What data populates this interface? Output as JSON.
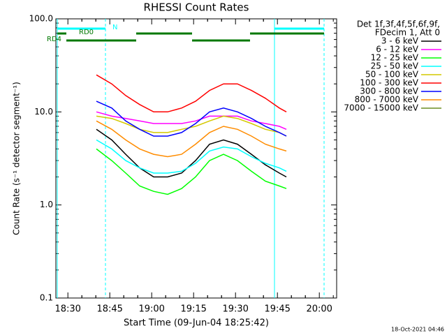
{
  "chart_data": {
    "type": "line",
    "title": "RHESSI Count Rates",
    "x_label": "Start Time (09-Jun-04 18:25:42)",
    "y_label": "Count Rate (s⁻¹ detector segment⁻¹)",
    "log_y": true,
    "xlim": [
      0,
      100.5
    ],
    "xticks": [
      {
        "value": 4.3,
        "label": "18:30"
      },
      {
        "value": 19.3,
        "label": "18:45"
      },
      {
        "value": 34.3,
        "label": "19:00"
      },
      {
        "value": 49.3,
        "label": "19:15"
      },
      {
        "value": 64.3,
        "label": "19:30"
      },
      {
        "value": 79.3,
        "label": "19:45"
      },
      {
        "value": 94.3,
        "label": "20:00"
      }
    ],
    "ylim": [
      0.1,
      100
    ],
    "yticks": [
      0.1,
      {
        "value": 1,
        "label": "1.0"
      },
      {
        "value": 10,
        "label": "10.0"
      },
      {
        "value": 100,
        "label": "100.0"
      }
    ],
    "legend_title": [
      "Det 1f,3f,4f,5f,6f,9f,",
      "FDecim 1, Att 0"
    ],
    "x": [
      14.5,
      20,
      25,
      30,
      35,
      40,
      45,
      50,
      55,
      60,
      65,
      70,
      75,
      80,
      82.5
    ],
    "series": [
      {
        "name": "3 - 6 keV",
        "color": "#000000",
        "values": [
          6.5,
          5,
          3.5,
          2.5,
          2,
          2,
          2.2,
          3,
          4.5,
          5,
          4.5,
          3.5,
          2.7,
          2.2,
          2
        ]
      },
      {
        "name": "6 - 12 keV",
        "color": "#ff00ff",
        "values": [
          10,
          9,
          8.5,
          8,
          7.5,
          7.5,
          7.5,
          8,
          9,
          9,
          9,
          8,
          7.5,
          7,
          6.5
        ]
      },
      {
        "name": "12 - 25 keV",
        "color": "#00ff00",
        "values": [
          4,
          3,
          2.2,
          1.6,
          1.4,
          1.3,
          1.5,
          2,
          3,
          3.5,
          3,
          2.3,
          1.8,
          1.6,
          1.5
        ]
      },
      {
        "name": "25 - 50 keV",
        "color": "#00ffff",
        "values": [
          5,
          4,
          3,
          2.5,
          2.2,
          2.2,
          2.3,
          2.8,
          3.8,
          4.2,
          4,
          3.3,
          2.8,
          2.5,
          2.3
        ]
      },
      {
        "name": "50 - 100 keV",
        "color": "#d4c800",
        "values": [
          9,
          8.5,
          7.5,
          6.5,
          6,
          6,
          6.5,
          7,
          8,
          9,
          8.5,
          7.5,
          6.5,
          6,
          5.5
        ]
      },
      {
        "name": "100 - 300 keV",
        "color": "#ff0000",
        "values": [
          25,
          20,
          15,
          12,
          10,
          10,
          11,
          13,
          17,
          20,
          20,
          17,
          14,
          11,
          10
        ]
      },
      {
        "name": "300 - 800 keV",
        "color": "#0000ff",
        "values": [
          13,
          11,
          8,
          6.5,
          5.5,
          5.5,
          6,
          7.5,
          10,
          11,
          10,
          8.5,
          7,
          6,
          5.5
        ]
      },
      {
        "name": "800 - 7000 keV",
        "color": "#ff8c00",
        "values": [
          8,
          6.5,
          5,
          4,
          3.5,
          3.3,
          3.5,
          4.5,
          6,
          7,
          6.5,
          5.5,
          4.5,
          4,
          3.8
        ]
      },
      {
        "name": "7000 - 15000 keV",
        "color": "#6b8e23",
        "values": [
          null,
          null,
          null,
          null,
          null,
          null,
          null,
          null,
          null,
          null,
          null,
          null,
          null,
          null,
          null
        ]
      }
    ],
    "flags": [
      {
        "name": "N",
        "color": "#00ffff",
        "intervals": [
          [
            0.5,
            17.75
          ],
          [
            78.25,
            96
          ]
        ]
      },
      {
        "name": "RD0",
        "color": "#007800",
        "intervals": [
          [
            0.5,
            3.75
          ],
          [
            28.75,
            48.75
          ],
          [
            69.5,
            96
          ]
        ]
      },
      {
        "name": "RD4",
        "color": "#007800",
        "intervals": [
          [
            3.75,
            28.75
          ],
          [
            48.75,
            69.5
          ]
        ]
      }
    ],
    "timestamp": "18-Oct-2021 04:46"
  }
}
